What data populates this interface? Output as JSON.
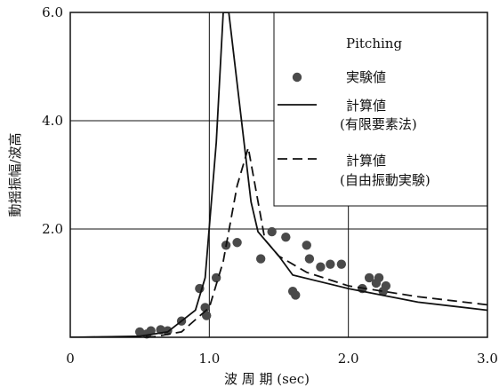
{
  "chart_data": {
    "type": "scatter",
    "xlabel": "波 周 期 (sec)",
    "ylabel": "動揺振幅/波高",
    "xlim": [
      0,
      3.0
    ],
    "ylim": [
      0,
      6.0
    ],
    "x_ticks": [
      "0",
      "1.0",
      "2.0",
      "3.0"
    ],
    "y_ticks": [
      "2.0",
      "4.0",
      "6.0"
    ],
    "grid": true,
    "legend_title": "Pitching",
    "legend_position": "top-right",
    "series": [
      {
        "name": "実験値",
        "style": "markers",
        "color": "#4a4a4a",
        "points": [
          [
            0.5,
            0.1
          ],
          [
            0.55,
            0.06
          ],
          [
            0.58,
            0.12
          ],
          [
            0.65,
            0.14
          ],
          [
            0.7,
            0.12
          ],
          [
            0.8,
            0.3
          ],
          [
            0.93,
            0.9
          ],
          [
            0.97,
            0.55
          ],
          [
            0.98,
            0.4
          ],
          [
            1.05,
            1.1
          ],
          [
            1.12,
            1.7
          ],
          [
            1.2,
            1.75
          ],
          [
            1.37,
            1.45
          ],
          [
            1.45,
            1.95
          ],
          [
            1.55,
            1.85
          ],
          [
            1.6,
            0.85
          ],
          [
            1.62,
            0.78
          ],
          [
            1.7,
            1.7
          ],
          [
            1.72,
            1.45
          ],
          [
            1.8,
            1.3
          ],
          [
            1.87,
            1.35
          ],
          [
            1.95,
            1.35
          ],
          [
            2.1,
            0.9
          ],
          [
            2.15,
            1.1
          ],
          [
            2.2,
            1.0
          ],
          [
            2.22,
            1.1
          ],
          [
            2.25,
            0.85
          ],
          [
            2.27,
            0.95
          ]
        ]
      },
      {
        "name": "計算値",
        "name2": "(有限要素法)",
        "style": "solid",
        "color": "#111111",
        "points": [
          [
            0.0,
            0.0
          ],
          [
            0.5,
            0.02
          ],
          [
            0.7,
            0.1
          ],
          [
            0.9,
            0.5
          ],
          [
            0.97,
            1.1
          ],
          [
            1.05,
            3.6
          ],
          [
            1.1,
            6.0
          ],
          [
            1.14,
            6.0
          ],
          [
            1.3,
            2.5
          ],
          [
            1.35,
            1.95
          ],
          [
            1.5,
            1.5
          ],
          [
            1.6,
            1.15
          ],
          [
            2.0,
            0.9
          ],
          [
            2.5,
            0.65
          ],
          [
            3.0,
            0.5
          ]
        ]
      },
      {
        "name": "計算値",
        "name2": "(自由振動実験)",
        "style": "dashed",
        "color": "#111111",
        "points": [
          [
            0.0,
            0.0
          ],
          [
            0.6,
            0.01
          ],
          [
            0.8,
            0.1
          ],
          [
            1.0,
            0.55
          ],
          [
            1.1,
            1.4
          ],
          [
            1.2,
            2.8
          ],
          [
            1.28,
            3.5
          ],
          [
            1.4,
            1.8
          ],
          [
            1.5,
            1.5
          ],
          [
            1.7,
            1.2
          ],
          [
            2.0,
            0.95
          ],
          [
            2.5,
            0.75
          ],
          [
            3.0,
            0.6
          ]
        ]
      }
    ]
  }
}
